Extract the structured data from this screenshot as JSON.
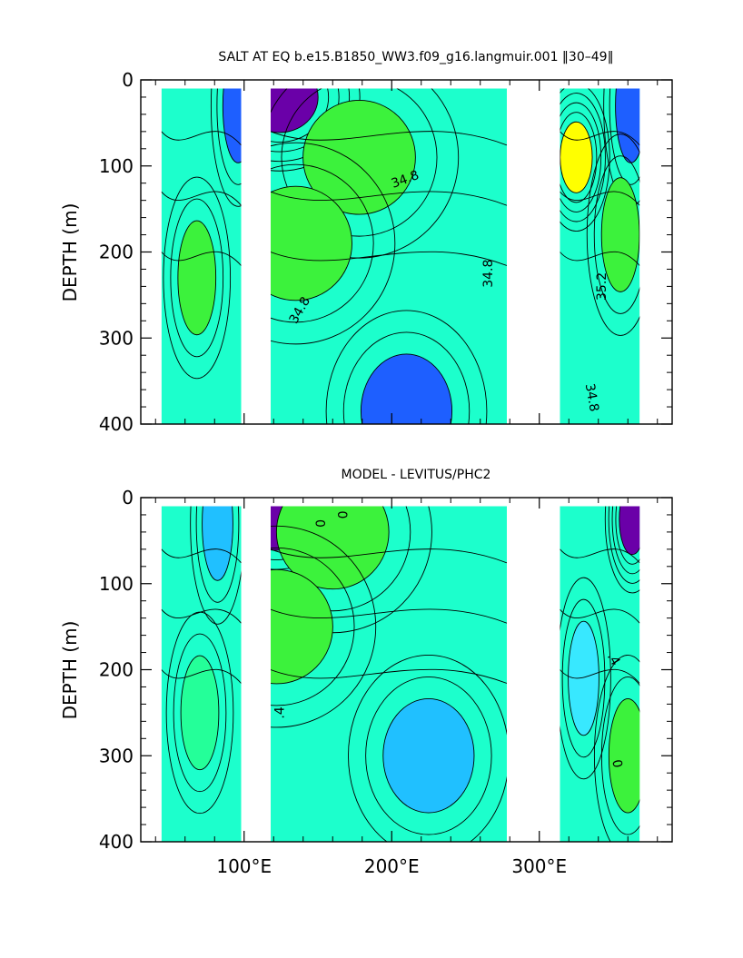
{
  "chart_data": [
    {
      "type": "heatmap",
      "subtype": "depth-longitude contour section",
      "title": "SALT AT EQ b.e15.B1850_WW3.f09_g16.langmuir.001 ‖30–49‖",
      "xlabel": "",
      "ylabel": "DEPTH (m)",
      "xlim": [
        30,
        390
      ],
      "ylim": [
        400,
        0
      ],
      "y_inverted": true,
      "x_ticks": [
        100,
        200,
        300
      ],
      "x_tick_labels": [
        "100°E",
        "200°E",
        "300°E"
      ],
      "y_ticks": [
        0,
        100,
        200,
        300,
        400
      ],
      "y_tick_labels": [
        "0",
        "100",
        "200",
        "300",
        "400"
      ],
      "contour_labels": [
        "34.8",
        "34.8",
        "34.8",
        "35.2",
        "34.8"
      ],
      "ocean_segments": [
        {
          "lon": [
            44,
            98
          ],
          "features": [
            {
              "lon": 96,
              "depth": 30,
              "level": "low"
            },
            {
              "lon": 68,
              "depth": 230,
              "level": "high"
            }
          ]
        },
        {
          "lon": [
            118,
            278
          ],
          "features": [
            {
              "lon": 124,
              "depth": 20,
              "level": "very low"
            },
            {
              "lon": 178,
              "depth": 90,
              "level": "high"
            },
            {
              "lon": 135,
              "depth": 190,
              "level": "high"
            },
            {
              "lon": 210,
              "depth": 385,
              "level": "low"
            }
          ]
        },
        {
          "lon": [
            314,
            368
          ],
          "features": [
            {
              "lon": 325,
              "depth": 90,
              "level": "very high"
            },
            {
              "lon": 362,
              "depth": 30,
              "level": "low"
            },
            {
              "lon": 355,
              "depth": 180,
              "level": "high"
            }
          ]
        }
      ],
      "colors": {
        "very_low": "#6a00a8",
        "low": "#1e5fff",
        "mid_low": "#38e8ff",
        "mid": "#1cffcc",
        "mid_high": "#24ff99",
        "high": "#3cf23c",
        "very_high": "#ffff00"
      }
    },
    {
      "type": "heatmap",
      "subtype": "depth-longitude contour section (difference)",
      "title": "MODEL - LEVITUS/PHC2",
      "xlabel": "",
      "ylabel": "DEPTH (m)",
      "xlim": [
        30,
        390
      ],
      "ylim": [
        400,
        0
      ],
      "y_inverted": true,
      "x_ticks": [
        100,
        200,
        300
      ],
      "x_tick_labels": [
        "100°E",
        "200°E",
        "300°E"
      ],
      "y_ticks": [
        0,
        100,
        200,
        300,
        400
      ],
      "y_tick_labels": [
        "0",
        "100",
        "200",
        "300",
        "400"
      ],
      "contour_labels": [
        "0",
        "0",
        ".4",
        ".4",
        "0"
      ],
      "ocean_segments": [
        {
          "lon": [
            44,
            98
          ],
          "features": [
            {
              "lon": 82,
              "depth": 30,
              "level": "low"
            },
            {
              "lon": 70,
              "depth": 250,
              "level": "mid_high"
            }
          ]
        },
        {
          "lon": [
            118,
            278
          ],
          "features": [
            {
              "lon": 122,
              "depth": 20,
              "level": "very low"
            },
            {
              "lon": 160,
              "depth": 40,
              "level": "high"
            },
            {
              "lon": 122,
              "depth": 150,
              "level": "high"
            },
            {
              "lon": 225,
              "depth": 300,
              "level": "low"
            }
          ]
        },
        {
          "lon": [
            314,
            368
          ],
          "features": [
            {
              "lon": 363,
              "depth": 25,
              "level": "very low"
            },
            {
              "lon": 330,
              "depth": 210,
              "level": "mid_low"
            },
            {
              "lon": 360,
              "depth": 300,
              "level": "high"
            }
          ]
        }
      ],
      "colors": {
        "very_low": "#6a00a8",
        "low": "#20c0ff",
        "mid_low": "#38e8ff",
        "mid": "#1cffcc",
        "mid_high": "#24ff99",
        "high": "#3cf23c"
      }
    }
  ]
}
